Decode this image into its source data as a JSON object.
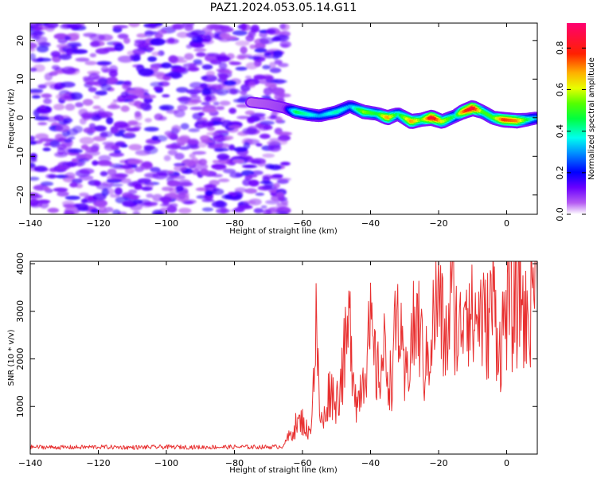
{
  "title": "PAZ1.2024.053.05.14.G11",
  "chart_data": [
    {
      "type": "heatmap",
      "xlabel": "Height of straight line (km)",
      "ylabel": "Frequency (Hz)",
      "xlim": [
        -140,
        9
      ],
      "ylim": [
        -25,
        24.5
      ],
      "xticks": [
        -140,
        -120,
        -100,
        -80,
        -60,
        -40,
        -20,
        0
      ],
      "yticks": [
        -20,
        -10,
        0,
        10,
        20
      ],
      "colormap": "rainbow",
      "colorbar": {
        "label": "Normalized spectral amplitude",
        "range": [
          0,
          0.92
        ],
        "ticks": [
          0.0,
          0.2,
          0.4,
          0.6,
          0.8
        ]
      },
      "noise_region": {
        "x": [
          -140,
          -65
        ],
        "y": [
          -25,
          24.5
        ],
        "amplitude": [
          0.05,
          0.18
        ]
      },
      "signal_track": [
        {
          "x": -75,
          "f": 4.0,
          "a": 0.1
        },
        {
          "x": -70,
          "f": 3.5,
          "a": 0.12
        },
        {
          "x": -65,
          "f": 2.5,
          "a": 0.15
        },
        {
          "x": -62,
          "f": 1.5,
          "a": 0.45
        },
        {
          "x": -58,
          "f": 0.8,
          "a": 0.38
        },
        {
          "x": -55,
          "f": 0.5,
          "a": 0.3
        },
        {
          "x": -50,
          "f": 1.5,
          "a": 0.4
        },
        {
          "x": -46,
          "f": 3.0,
          "a": 0.3
        },
        {
          "x": -42,
          "f": 1.5,
          "a": 0.55
        },
        {
          "x": -38,
          "f": 1.0,
          "a": 0.45
        },
        {
          "x": -35,
          "f": 0.0,
          "a": 0.7
        },
        {
          "x": -32,
          "f": 1.0,
          "a": 0.4
        },
        {
          "x": -28,
          "f": -1.0,
          "a": 0.7
        },
        {
          "x": -25,
          "f": -0.5,
          "a": 0.5
        },
        {
          "x": -22,
          "f": 0.0,
          "a": 0.85
        },
        {
          "x": -19,
          "f": -1.0,
          "a": 0.6
        },
        {
          "x": -15,
          "f": 0.5,
          "a": 0.4
        },
        {
          "x": -13,
          "f": 1.5,
          "a": 0.7
        },
        {
          "x": -10,
          "f": 2.5,
          "a": 0.85
        },
        {
          "x": -7,
          "f": 1.5,
          "a": 0.5
        },
        {
          "x": -4,
          "f": 0.0,
          "a": 0.5
        },
        {
          "x": -1,
          "f": -0.5,
          "a": 0.75
        },
        {
          "x": 3,
          "f": -0.8,
          "a": 0.7
        },
        {
          "x": 6,
          "f": -0.5,
          "a": 0.45
        },
        {
          "x": 9,
          "f": 0.0,
          "a": 0.3
        }
      ]
    },
    {
      "type": "line",
      "xlabel": "Height of straight line (km)",
      "ylabel": "SNR (10 * v/v)",
      "xlim": [
        -140,
        9
      ],
      "ylim": [
        0,
        4050
      ],
      "xticks": [
        -140,
        -120,
        -100,
        -80,
        -60,
        -40,
        -20,
        0
      ],
      "yticks": [
        1000,
        2000,
        3000,
        4000
      ],
      "color": "#e83030",
      "series": [
        {
          "x": [
            -140,
            -130,
            -120,
            -110,
            -100,
            -90,
            -80,
            -70,
            -66,
            -64,
            -62,
            -60,
            -58,
            -57,
            -56,
            -55,
            -54,
            -52,
            -50,
            -48,
            -46,
            -44,
            -42,
            -40,
            -38,
            -36,
            -34,
            -32,
            -30,
            -28,
            -26,
            -24,
            -22,
            -20,
            -18,
            -16,
            -14,
            -12,
            -10,
            -8,
            -6,
            -4,
            -2,
            0,
            2,
            4,
            6,
            8,
            9
          ],
          "y": [
            150,
            140,
            150,
            140,
            150,
            145,
            150,
            150,
            160,
            350,
            600,
            700,
            400,
            1200,
            2750,
            900,
            600,
            1400,
            1100,
            1900,
            2700,
            1000,
            1800,
            2500,
            1600,
            2100,
            1500,
            3000,
            1400,
            2400,
            2800,
            1700,
            2600,
            3300,
            2200,
            3400,
            2300,
            3650,
            2700,
            3000,
            2600,
            3300,
            2200,
            3100,
            2900,
            3500,
            2600,
            4000,
            3400
          ]
        }
      ]
    }
  ]
}
